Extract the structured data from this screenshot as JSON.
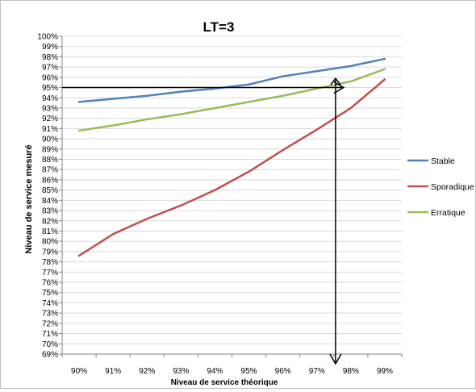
{
  "chart_data": {
    "type": "line",
    "title": "LT=3",
    "xlabel": "Niveau de service théorique",
    "ylabel": "Niveau de service mesuré",
    "categories": [
      "90%",
      "91%",
      "92%",
      "93%",
      "94%",
      "95%",
      "96%",
      "97%",
      "98%",
      "99%"
    ],
    "y_ticks": [
      "69%",
      "70%",
      "71%",
      "72%",
      "73%",
      "74%",
      "75%",
      "76%",
      "77%",
      "78%",
      "79%",
      "80%",
      "81%",
      "82%",
      "83%",
      "84%",
      "85%",
      "86%",
      "87%",
      "88%",
      "89%",
      "90%",
      "91%",
      "92%",
      "93%",
      "94%",
      "95%",
      "96%",
      "97%",
      "98%",
      "99%",
      "100%"
    ],
    "ylim": [
      69,
      100
    ],
    "grid": true,
    "legend_position": "right",
    "series": [
      {
        "name": "Stable",
        "color": "#4F81BD",
        "values": [
          93.6,
          93.9,
          94.2,
          94.6,
          94.9,
          95.3,
          96.1,
          96.6,
          97.1,
          97.8
        ]
      },
      {
        "name": "Sporadique",
        "color": "#C0504D",
        "values": [
          78.6,
          80.7,
          82.2,
          83.5,
          85.0,
          86.8,
          88.9,
          90.9,
          93.0,
          95.8
        ]
      },
      {
        "name": "Erratique",
        "color": "#9BBB59",
        "values": [
          90.8,
          91.3,
          91.9,
          92.4,
          93.0,
          93.6,
          94.2,
          94.9,
          95.6,
          96.8
        ]
      }
    ],
    "annotations": [
      {
        "type": "horizontal-arrow",
        "y": 95,
        "x_from": "90%",
        "x_to": 97.55
      },
      {
        "type": "vertical-arrow",
        "x": 97.55,
        "y_from": 95.9,
        "y_to": 69
      }
    ]
  }
}
